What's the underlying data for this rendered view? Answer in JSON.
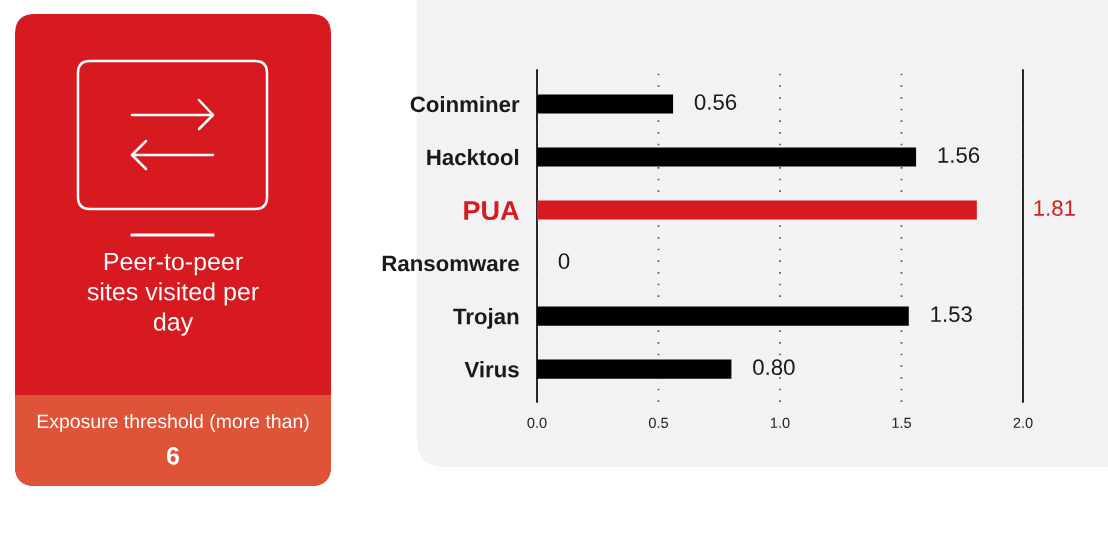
{
  "chart_data": [
    {
      "type": "other",
      "title": "Peer-to-peer sites visited per day",
      "annotations": [
        "Exposure threshold (more than)",
        "6"
      ]
    },
    {
      "type": "bar",
      "orientation": "horizontal",
      "categories": [
        "Coinminer",
        "Hacktool",
        "PUA",
        "Ransomware",
        "Trojan",
        "Virus"
      ],
      "values": [
        0.56,
        1.56,
        1.81,
        0,
        1.53,
        0.8
      ],
      "colors": [
        "#000000",
        "#000000",
        "#d71920",
        "#000000",
        "#000000",
        "#000000"
      ],
      "value_labels": [
        "0.56",
        "1.56",
        "1.81",
        "0",
        "1.53",
        "0.80"
      ],
      "xlim": [
        0,
        2
      ],
      "xticks": [
        {
          "value": 0,
          "label": "0.0"
        },
        0.5,
        {
          "value": 1,
          "label": "1.0"
        },
        1.5,
        {
          "value": 2,
          "label": "2.0"
        }
      ],
      "grid": "x"
    }
  ]
}
